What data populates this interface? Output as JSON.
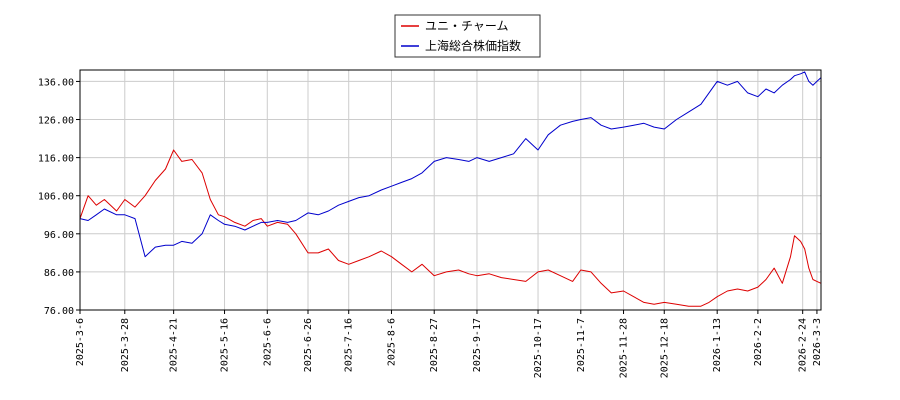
{
  "chart_data": {
    "type": "line",
    "title": "",
    "xlabel": "",
    "ylabel": "",
    "ylim": [
      76,
      139
    ],
    "grid": true,
    "legend_position": "top-center",
    "y_ticks": [
      "76.00",
      "86.00",
      "96.00",
      "106.00",
      "116.00",
      "126.00",
      "136.00"
    ],
    "x_ticks": [
      "2025-3-6",
      "2025-3-28",
      "2025-4-21",
      "2025-5-16",
      "2025-6-6",
      "2025-6-26",
      "2025-7-16",
      "2025-8-6",
      "2025-8-27",
      "2025-9-17",
      "2025-10-17",
      "2025-11-7",
      "2025-11-28",
      "2025-12-18",
      "2026-1-13",
      "2026-2-2",
      "2026-2-24",
      "2026-3-3"
    ],
    "series": [
      {
        "name": "ユニ・チャーム",
        "color": "#dd0000",
        "points": [
          [
            "2025-3-6",
            100.0
          ],
          [
            "2025-3-10",
            106.0
          ],
          [
            "2025-3-14",
            103.5
          ],
          [
            "2025-3-18",
            105.0
          ],
          [
            "2025-3-24",
            102.0
          ],
          [
            "2025-3-28",
            105.0
          ],
          [
            "2025-4-2",
            103.0
          ],
          [
            "2025-4-7",
            106.0
          ],
          [
            "2025-4-12",
            110.0
          ],
          [
            "2025-4-17",
            113.0
          ],
          [
            "2025-4-21",
            118.0
          ],
          [
            "2025-4-25",
            115.0
          ],
          [
            "2025-4-30",
            115.5
          ],
          [
            "2025-5-5",
            112.0
          ],
          [
            "2025-5-9",
            105.0
          ],
          [
            "2025-5-13",
            101.0
          ],
          [
            "2025-5-16",
            100.5
          ],
          [
            "2025-5-21",
            99.0
          ],
          [
            "2025-5-26",
            98.0
          ],
          [
            "2025-5-30",
            99.5
          ],
          [
            "2025-6-3",
            100.0
          ],
          [
            "2025-6-6",
            98.0
          ],
          [
            "2025-6-11",
            99.0
          ],
          [
            "2025-6-16",
            98.5
          ],
          [
            "2025-6-20",
            96.0
          ],
          [
            "2025-6-26",
            91.0
          ],
          [
            "2025-7-1",
            91.0
          ],
          [
            "2025-7-6",
            92.0
          ],
          [
            "2025-7-11",
            89.0
          ],
          [
            "2025-7-16",
            88.0
          ],
          [
            "2025-7-21",
            89.0
          ],
          [
            "2025-7-26",
            90.0
          ],
          [
            "2025-8-1",
            91.5
          ],
          [
            "2025-8-6",
            90.0
          ],
          [
            "2025-8-11",
            88.0
          ],
          [
            "2025-8-16",
            86.0
          ],
          [
            "2025-8-21",
            88.0
          ],
          [
            "2025-8-27",
            85.0
          ],
          [
            "2025-9-2",
            86.0
          ],
          [
            "2025-9-8",
            86.5
          ],
          [
            "2025-9-13",
            85.5
          ],
          [
            "2025-9-17",
            85.0
          ],
          [
            "2025-9-23",
            85.5
          ],
          [
            "2025-9-29",
            84.5
          ],
          [
            "2025-10-5",
            84.0
          ],
          [
            "2025-10-11",
            83.5
          ],
          [
            "2025-10-17",
            86.0
          ],
          [
            "2025-10-22",
            86.5
          ],
          [
            "2025-10-28",
            85.0
          ],
          [
            "2025-11-3",
            83.5
          ],
          [
            "2025-11-7",
            86.5
          ],
          [
            "2025-11-12",
            86.0
          ],
          [
            "2025-11-17",
            83.0
          ],
          [
            "2025-11-22",
            80.5
          ],
          [
            "2025-11-28",
            81.0
          ],
          [
            "2025-12-3",
            79.5
          ],
          [
            "2025-12-8",
            78.0
          ],
          [
            "2025-12-13",
            77.5
          ],
          [
            "2025-12-18",
            78.0
          ],
          [
            "2025-12-24",
            77.5
          ],
          [
            "2025-12-30",
            77.0
          ],
          [
            "2026-1-5",
            77.0
          ],
          [
            "2026-1-9",
            78.0
          ],
          [
            "2026-1-13",
            79.5
          ],
          [
            "2026-1-18",
            81.0
          ],
          [
            "2026-1-23",
            81.5
          ],
          [
            "2026-1-28",
            81.0
          ],
          [
            "2026-2-2",
            82.0
          ],
          [
            "2026-2-6",
            84.0
          ],
          [
            "2026-2-10",
            87.0
          ],
          [
            "2026-2-14",
            83.0
          ],
          [
            "2026-2-18",
            90.0
          ],
          [
            "2026-2-20",
            95.5
          ],
          [
            "2026-2-23",
            94.0
          ],
          [
            "2026-2-25",
            92.0
          ],
          [
            "2026-2-27",
            87.0
          ],
          [
            "2026-3-1",
            84.0
          ],
          [
            "2026-3-3",
            83.5
          ],
          [
            "2026-3-5",
            83.0
          ]
        ]
      },
      {
        "name": "上海総合株価指数",
        "color": "#0000cc",
        "points": [
          [
            "2025-3-6",
            100.0
          ],
          [
            "2025-3-10",
            99.5
          ],
          [
            "2025-3-14",
            101.0
          ],
          [
            "2025-3-18",
            102.5
          ],
          [
            "2025-3-24",
            101.0
          ],
          [
            "2025-3-28",
            101.0
          ],
          [
            "2025-4-2",
            100.0
          ],
          [
            "2025-4-7",
            90.0
          ],
          [
            "2025-4-12",
            92.5
          ],
          [
            "2025-4-17",
            93.0
          ],
          [
            "2025-4-21",
            93.0
          ],
          [
            "2025-4-25",
            94.0
          ],
          [
            "2025-4-30",
            93.5
          ],
          [
            "2025-5-5",
            96.0
          ],
          [
            "2025-5-9",
            101.0
          ],
          [
            "2025-5-13",
            99.5
          ],
          [
            "2025-5-16",
            98.5
          ],
          [
            "2025-5-21",
            98.0
          ],
          [
            "2025-5-26",
            97.0
          ],
          [
            "2025-5-30",
            98.0
          ],
          [
            "2025-6-3",
            99.0
          ],
          [
            "2025-6-6",
            99.0
          ],
          [
            "2025-6-11",
            99.5
          ],
          [
            "2025-6-16",
            99.0
          ],
          [
            "2025-6-20",
            99.5
          ],
          [
            "2025-6-26",
            101.5
          ],
          [
            "2025-7-1",
            101.0
          ],
          [
            "2025-7-6",
            102.0
          ],
          [
            "2025-7-11",
            103.5
          ],
          [
            "2025-7-16",
            104.5
          ],
          [
            "2025-7-21",
            105.5
          ],
          [
            "2025-7-26",
            106.0
          ],
          [
            "2025-8-1",
            107.5
          ],
          [
            "2025-8-6",
            108.5
          ],
          [
            "2025-8-11",
            109.5
          ],
          [
            "2025-8-16",
            110.5
          ],
          [
            "2025-8-21",
            112.0
          ],
          [
            "2025-8-27",
            115.0
          ],
          [
            "2025-9-2",
            116.0
          ],
          [
            "2025-9-8",
            115.5
          ],
          [
            "2025-9-13",
            115.0
          ],
          [
            "2025-9-17",
            116.0
          ],
          [
            "2025-9-23",
            115.0
          ],
          [
            "2025-9-29",
            116.0
          ],
          [
            "2025-10-5",
            117.0
          ],
          [
            "2025-10-11",
            121.0
          ],
          [
            "2025-10-17",
            118.0
          ],
          [
            "2025-10-22",
            122.0
          ],
          [
            "2025-10-28",
            124.5
          ],
          [
            "2025-11-3",
            125.5
          ],
          [
            "2025-11-7",
            126.0
          ],
          [
            "2025-11-12",
            126.5
          ],
          [
            "2025-11-17",
            124.5
          ],
          [
            "2025-11-22",
            123.5
          ],
          [
            "2025-11-28",
            124.0
          ],
          [
            "2025-12-3",
            124.5
          ],
          [
            "2025-12-8",
            125.0
          ],
          [
            "2025-12-13",
            124.0
          ],
          [
            "2025-12-18",
            123.5
          ],
          [
            "2025-12-24",
            126.0
          ],
          [
            "2025-12-30",
            128.0
          ],
          [
            "2026-1-5",
            130.0
          ],
          [
            "2026-1-9",
            133.0
          ],
          [
            "2026-1-13",
            136.0
          ],
          [
            "2026-1-18",
            135.0
          ],
          [
            "2026-1-23",
            136.0
          ],
          [
            "2026-1-28",
            133.0
          ],
          [
            "2026-2-2",
            132.0
          ],
          [
            "2026-2-6",
            134.0
          ],
          [
            "2026-2-10",
            133.0
          ],
          [
            "2026-2-14",
            135.0
          ],
          [
            "2026-2-18",
            136.5
          ],
          [
            "2026-2-20",
            137.5
          ],
          [
            "2026-2-23",
            138.0
          ],
          [
            "2026-2-25",
            138.5
          ],
          [
            "2026-2-27",
            136.0
          ],
          [
            "2026-3-1",
            135.0
          ],
          [
            "2026-3-3",
            136.0
          ],
          [
            "2026-3-5",
            137.0
          ]
        ]
      }
    ]
  }
}
